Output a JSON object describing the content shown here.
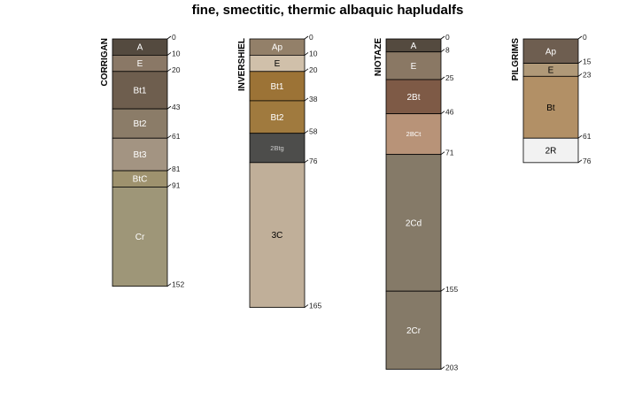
{
  "chart_data": {
    "type": "soil-profile-sketch",
    "title": "fine, smectitic, thermic albaquic hapludalfs",
    "depth_units": "cm",
    "profiles": [
      {
        "name": "CORRIGAN",
        "horizons": [
          {
            "name": "A",
            "top": 0,
            "bottom": 10,
            "color": "#544a3f",
            "text_color": "#ffffff"
          },
          {
            "name": "E",
            "top": 10,
            "bottom": 20,
            "color": "#8a7866",
            "text_color": "#ffffff"
          },
          {
            "name": "Bt1",
            "top": 20,
            "bottom": 43,
            "color": "#6e5e4e",
            "text_color": "#ffffff"
          },
          {
            "name": "Bt2",
            "top": 43,
            "bottom": 61,
            "color": "#8b7c68",
            "text_color": "#ffffff"
          },
          {
            "name": "Bt3",
            "top": 61,
            "bottom": 81,
            "color": "#a39482",
            "text_color": "#ffffff"
          },
          {
            "name": "BtC",
            "top": 81,
            "bottom": 91,
            "color": "#9e926e",
            "text_color": "#ffffff"
          },
          {
            "name": "Cr",
            "top": 91,
            "bottom": 152,
            "color": "#9e9678",
            "text_color": "#ffffff"
          }
        ],
        "depth_labels": [
          "0",
          "10",
          "20",
          "43",
          "61",
          "81",
          "91",
          "152"
        ]
      },
      {
        "name": "INVERSHIEL",
        "horizons": [
          {
            "name": "Ap",
            "top": 0,
            "bottom": 10,
            "color": "#938069",
            "text_color": "#ffffff"
          },
          {
            "name": "E",
            "top": 10,
            "bottom": 20,
            "color": "#d0c0aa",
            "text_color": "#000000"
          },
          {
            "name": "Bt1",
            "top": 20,
            "bottom": 38,
            "color": "#9c7336",
            "text_color": "#ffffff"
          },
          {
            "name": "Bt2",
            "top": 38,
            "bottom": 58,
            "color": "#a07a3e",
            "text_color": "#ffffff"
          },
          {
            "name": "2Btg",
            "top": 58,
            "bottom": 76,
            "color": "#4d4d4b",
            "text_color": "#cccccc"
          },
          {
            "name": "3C",
            "top": 76,
            "bottom": 165,
            "color": "#c0af99",
            "text_color": "#000000"
          }
        ],
        "depth_labels": [
          "0",
          "10",
          "20",
          "38",
          "58",
          "76",
          "165"
        ]
      },
      {
        "name": "NIOTAZE",
        "horizons": [
          {
            "name": "A",
            "top": 0,
            "bottom": 8,
            "color": "#544a3f",
            "text_color": "#ffffff"
          },
          {
            "name": "E",
            "top": 8,
            "bottom": 25,
            "color": "#8a7864",
            "text_color": "#ffffff"
          },
          {
            "name": "2Bt",
            "top": 25,
            "bottom": 46,
            "color": "#7e5a46",
            "text_color": "#ffffff"
          },
          {
            "name": "2BCt",
            "top": 46,
            "bottom": 71,
            "color": "#b89378",
            "text_color": "#ffffff"
          },
          {
            "name": "2Cd",
            "top": 71,
            "bottom": 155,
            "color": "#857a68",
            "text_color": "#ffffff"
          },
          {
            "name": "2Cr",
            "top": 155,
            "bottom": 203,
            "color": "#857a68",
            "text_color": "#ffffff"
          }
        ],
        "depth_labels": [
          "0",
          "8",
          "25",
          "46",
          "71",
          "155",
          "203"
        ]
      },
      {
        "name": "PILGRIMS",
        "horizons": [
          {
            "name": "Ap",
            "top": 0,
            "bottom": 15,
            "color": "#6e5e50",
            "text_color": "#ffffff"
          },
          {
            "name": "E",
            "top": 15,
            "bottom": 23,
            "color": "#b09978",
            "text_color": "#000000"
          },
          {
            "name": "Bt",
            "top": 23,
            "bottom": 61,
            "color": "#b29066",
            "text_color": "#000000"
          },
          {
            "name": "2R",
            "top": 61,
            "bottom": 76,
            "color": "#f2f2f2",
            "text_color": "#000000"
          }
        ],
        "depth_labels": [
          "0",
          "15",
          "23",
          "61",
          "76"
        ]
      }
    ]
  }
}
